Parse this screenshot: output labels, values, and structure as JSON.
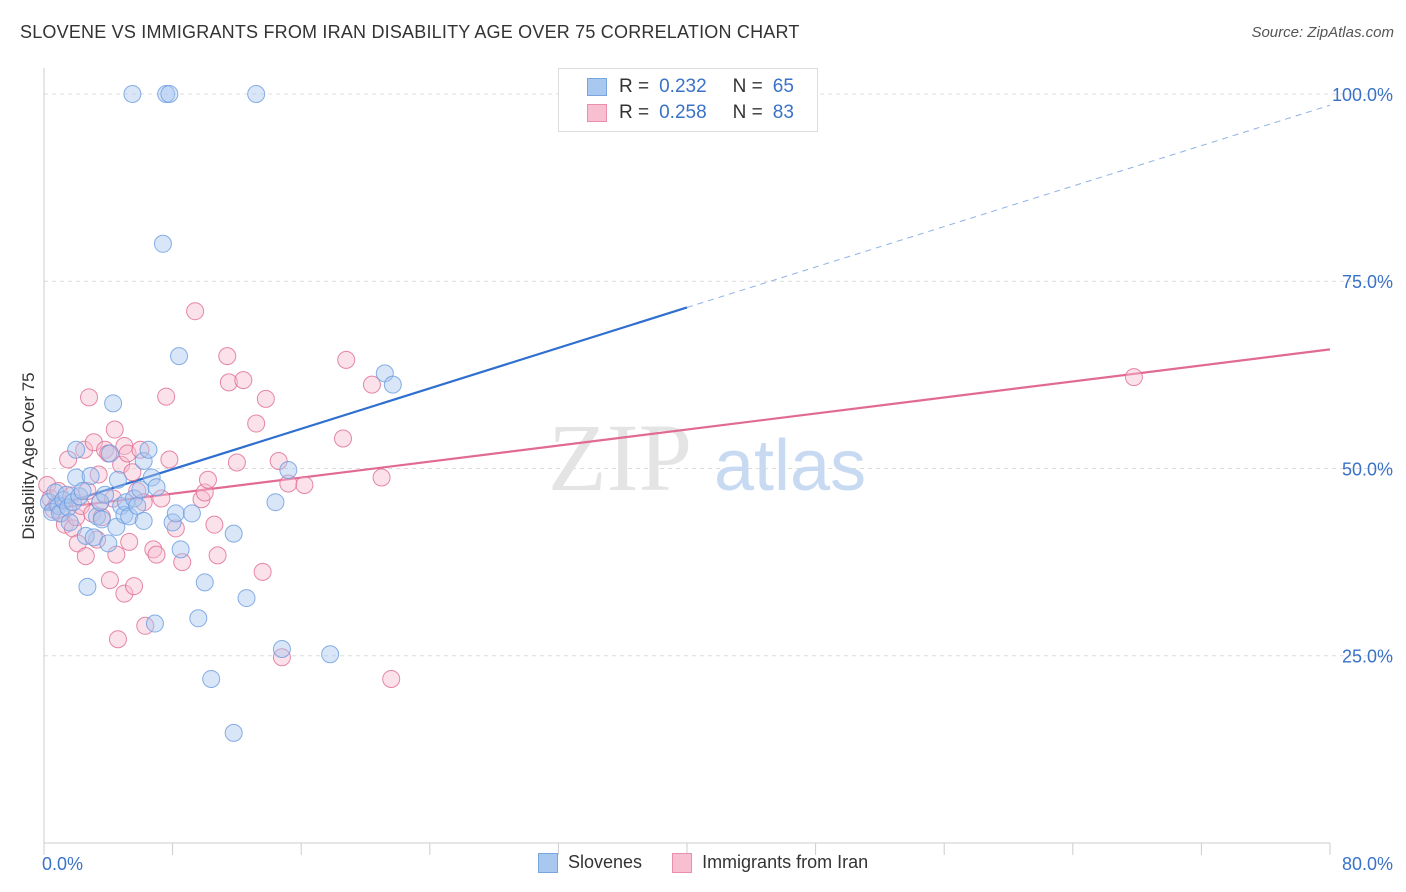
{
  "title": "SLOVENE VS IMMIGRANTS FROM IRAN DISABILITY AGE OVER 75 CORRELATION CHART",
  "source": "Source: ZipAtlas.com",
  "watermark": {
    "zip": "ZIP",
    "atlas": "atlas"
  },
  "legend_top": [
    {
      "r_label": "R =",
      "r_value": "0.232",
      "n_label": "N =",
      "n_value": "65",
      "color": "#a9c8f0",
      "border": "#7aa6e0"
    },
    {
      "r_label": "R =",
      "r_value": "0.258",
      "n_label": "N =",
      "n_value": "83",
      "color": "#f7bfd0",
      "border": "#e98fad"
    }
  ],
  "legend_bottom": [
    {
      "label": "Slovenes",
      "color": "#a9c8f0",
      "border": "#7aa6e0"
    },
    {
      "label": "Immigrants from Iran",
      "color": "#f7bfd0",
      "border": "#e98fad"
    }
  ],
  "chart_data": {
    "type": "scatter",
    "title": "SLOVENE VS IMMIGRANTS FROM IRAN DISABILITY AGE OVER 75 CORRELATION CHART",
    "xlabel": "",
    "ylabel": "Disability Age Over 75",
    "xlim": [
      0,
      80
    ],
    "ylim": [
      0,
      102
    ],
    "x_tick_labels": [
      "0.0%",
      "80.0%"
    ],
    "y_ticks": [
      25,
      50,
      75,
      100
    ],
    "y_tick_labels": [
      "25.0%",
      "50.0%",
      "75.0%",
      "100.0%"
    ],
    "grid": true,
    "legend_position": "top-center",
    "series": [
      {
        "name": "Slovenes",
        "color": "#6a9be0",
        "fill": "rgba(169,200,240,0.45)",
        "trend": {
          "x0": 0,
          "y0": 44.5,
          "x1": 40,
          "y1": 71.5,
          "dash_x1": 80,
          "dash_y1": 98.5
        },
        "points": [
          [
            0.3,
            45.5
          ],
          [
            0.5,
            44.2
          ],
          [
            0.7,
            46.8
          ],
          [
            0.9,
            45.0
          ],
          [
            1.0,
            44.0
          ],
          [
            1.2,
            45.8
          ],
          [
            1.4,
            46.5
          ],
          [
            1.5,
            44.8
          ],
          [
            1.6,
            42.8
          ],
          [
            1.8,
            45.5
          ],
          [
            2.0,
            52.5
          ],
          [
            2.0,
            48.8
          ],
          [
            2.2,
            46.3
          ],
          [
            2.4,
            47.0
          ],
          [
            2.6,
            41.0
          ],
          [
            2.7,
            34.2
          ],
          [
            2.9,
            49.0
          ],
          [
            3.1,
            40.8
          ],
          [
            3.3,
            43.6
          ],
          [
            3.5,
            45.5
          ],
          [
            3.6,
            43.2
          ],
          [
            3.8,
            46.5
          ],
          [
            4.0,
            40.0
          ],
          [
            4.1,
            52.0
          ],
          [
            4.3,
            58.7
          ],
          [
            4.5,
            42.2
          ],
          [
            4.6,
            48.5
          ],
          [
            4.8,
            45.0
          ],
          [
            5.0,
            43.8
          ],
          [
            5.1,
            45.5
          ],
          [
            5.3,
            43.6
          ],
          [
            5.5,
            100.0
          ],
          [
            5.6,
            46.0
          ],
          [
            5.8,
            45.0
          ],
          [
            6.0,
            47.2
          ],
          [
            6.2,
            51.0
          ],
          [
            6.2,
            43.0
          ],
          [
            6.5,
            52.5
          ],
          [
            6.7,
            48.8
          ],
          [
            6.9,
            29.3
          ],
          [
            7.0,
            47.5
          ],
          [
            7.4,
            80.0
          ],
          [
            7.6,
            100.0
          ],
          [
            7.8,
            100.0
          ],
          [
            8.0,
            42.8
          ],
          [
            8.2,
            44.0
          ],
          [
            8.4,
            65.0
          ],
          [
            8.5,
            39.2
          ],
          [
            9.6,
            30.0
          ],
          [
            9.2,
            44.0
          ],
          [
            10.0,
            34.8
          ],
          [
            10.4,
            21.9
          ],
          [
            11.8,
            41.3
          ],
          [
            11.8,
            14.7
          ],
          [
            12.6,
            32.7
          ],
          [
            13.2,
            100.0
          ],
          [
            14.4,
            45.5
          ],
          [
            14.8,
            25.9
          ],
          [
            15.2,
            49.8
          ],
          [
            17.8,
            25.2
          ],
          [
            21.2,
            62.7
          ],
          [
            21.7,
            61.2
          ],
          [
            33.2,
            100.0
          ]
        ]
      },
      {
        "name": "Immigrants from Iran",
        "color": "#e06a93",
        "fill": "rgba(247,191,208,0.45)",
        "trend": {
          "x0": 0,
          "y0": 44.5,
          "x1": 80,
          "y1": 65.9
        },
        "points": [
          [
            0.2,
            47.8
          ],
          [
            0.4,
            46.0
          ],
          [
            0.6,
            44.5
          ],
          [
            0.8,
            45.2
          ],
          [
            0.9,
            47.0
          ],
          [
            1.1,
            44.0
          ],
          [
            1.3,
            42.5
          ],
          [
            1.5,
            51.2
          ],
          [
            1.7,
            46.4
          ],
          [
            1.8,
            42.0
          ],
          [
            2.0,
            43.5
          ],
          [
            2.1,
            40.0
          ],
          [
            2.3,
            45.0
          ],
          [
            2.5,
            52.5
          ],
          [
            2.6,
            38.3
          ],
          [
            2.7,
            47.0
          ],
          [
            2.8,
            59.5
          ],
          [
            3.0,
            44.0
          ],
          [
            3.1,
            53.5
          ],
          [
            3.3,
            40.5
          ],
          [
            3.4,
            49.2
          ],
          [
            3.5,
            45.5
          ],
          [
            3.6,
            43.5
          ],
          [
            3.8,
            52.5
          ],
          [
            4.0,
            52.0
          ],
          [
            4.1,
            35.1
          ],
          [
            4.3,
            46.0
          ],
          [
            4.4,
            55.2
          ],
          [
            4.5,
            38.5
          ],
          [
            4.6,
            27.2
          ],
          [
            4.8,
            50.5
          ],
          [
            5.0,
            33.3
          ],
          [
            5.0,
            53.0
          ],
          [
            5.2,
            52.0
          ],
          [
            5.3,
            40.2
          ],
          [
            5.5,
            49.5
          ],
          [
            5.6,
            34.3
          ],
          [
            5.8,
            47.0
          ],
          [
            6.0,
            52.5
          ],
          [
            6.2,
            45.5
          ],
          [
            6.3,
            29.0
          ],
          [
            6.8,
            39.2
          ],
          [
            7.0,
            38.5
          ],
          [
            7.3,
            46.0
          ],
          [
            7.6,
            59.6
          ],
          [
            7.8,
            51.2
          ],
          [
            8.2,
            42.0
          ],
          [
            8.6,
            37.5
          ],
          [
            9.4,
            71.0
          ],
          [
            9.8,
            45.9
          ],
          [
            10.0,
            46.8
          ],
          [
            10.2,
            48.5
          ],
          [
            10.6,
            42.5
          ],
          [
            10.8,
            38.4
          ],
          [
            11.4,
            65.0
          ],
          [
            11.5,
            61.5
          ],
          [
            12.0,
            50.8
          ],
          [
            12.4,
            61.8
          ],
          [
            13.2,
            56.0
          ],
          [
            13.6,
            36.2
          ],
          [
            13.8,
            59.3
          ],
          [
            14.6,
            51.0
          ],
          [
            14.8,
            24.8
          ],
          [
            15.2,
            48.0
          ],
          [
            16.2,
            47.8
          ],
          [
            18.6,
            54.0
          ],
          [
            18.8,
            64.5
          ],
          [
            20.4,
            61.2
          ],
          [
            21.0,
            48.8
          ],
          [
            21.6,
            21.9
          ],
          [
            67.8,
            62.2
          ]
        ]
      }
    ]
  }
}
